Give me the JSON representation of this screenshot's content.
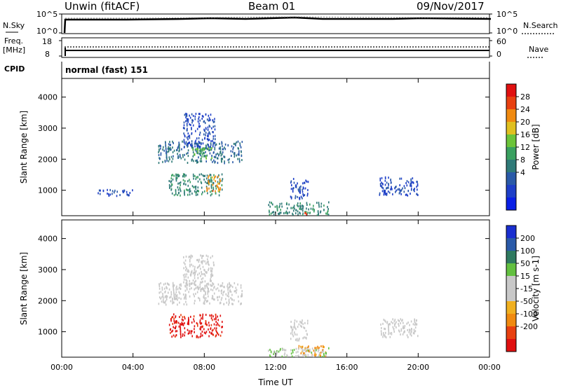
{
  "header": {
    "station": "Unwin (fitACF)",
    "beam": "Beam 01",
    "date": "09/Nov/2017"
  },
  "top_panels": {
    "nsky_label": "N.Sky",
    "nsky_ticks": [
      "10^5",
      "10^0"
    ],
    "nsearch_label": "N.Search",
    "nsearch_ticks": [
      "10^5",
      "10^0"
    ],
    "freq_label": "Freq.",
    "freq_unit": "[MHz]",
    "freq_ticks": [
      "18",
      "8"
    ],
    "nave_label": "Nave",
    "nave_ticks": [
      "60",
      "0"
    ],
    "cpid_label": "CPID",
    "cpid_value": "normal (fast) 151"
  },
  "colors": {
    "power_scale": [
      "#0a1fe6",
      "#1e3fc8",
      "#2a5aa8",
      "#2f7a78",
      "#3aa060",
      "#6cc43a",
      "#e0c020",
      "#f08a10",
      "#e84010",
      "#e01010"
    ],
    "velocity_scale": [
      "#1a2fd0",
      "#2a5aa8",
      "#2f7a60",
      "#63c040",
      "#c8c8c8",
      "#c8c8c8",
      "#f0b020",
      "#f08a10",
      "#e84010",
      "#e01010"
    ]
  },
  "chart_data": [
    {
      "type": "heatmap",
      "panel": "power",
      "ylabel": "Slant Range [km]",
      "yticks": [
        "4000",
        "3000",
        "2000",
        "1000"
      ],
      "ylim": [
        180,
        4600
      ],
      "xlim": [
        0,
        24
      ],
      "colorbar": {
        "label": "Power [dB]",
        "ticks": [
          "28",
          "24",
          "20",
          "16",
          "12",
          "8",
          "4"
        ],
        "range": [
          0,
          32
        ]
      },
      "regions": [
        {
          "t": [
            5.4,
            10.1
          ],
          "r": [
            1900,
            2600
          ],
          "value": 10
        },
        {
          "t": [
            6.8,
            8.6
          ],
          "r": [
            2400,
            3500
          ],
          "value": 6
        },
        {
          "t": [
            7.3,
            8.4
          ],
          "r": [
            2050,
            2400
          ],
          "value": 16
        },
        {
          "t": [
            6.0,
            9.0
          ],
          "r": [
            850,
            1550
          ],
          "value": 12
        },
        {
          "t": [
            8.1,
            8.9
          ],
          "r": [
            1000,
            1500
          ],
          "value": 24
        },
        {
          "t": [
            12.8,
            13.8
          ],
          "r": [
            750,
            1400
          ],
          "value": 6
        },
        {
          "t": [
            17.8,
            20.0
          ],
          "r": [
            850,
            1450
          ],
          "value": 6
        },
        {
          "t": [
            2.0,
            4.0
          ],
          "r": [
            850,
            1050
          ],
          "value": 6
        },
        {
          "t": [
            11.5,
            15.0
          ],
          "r": [
            220,
            650
          ],
          "value": 12
        },
        {
          "t": [
            13.5,
            13.8
          ],
          "r": [
            250,
            380
          ],
          "value": 28
        }
      ]
    },
    {
      "type": "heatmap",
      "panel": "velocity",
      "ylabel": "Slant Range [km]",
      "yticks": [
        "4000",
        "3000",
        "2000",
        "1000"
      ],
      "ylim": [
        180,
        4600
      ],
      "xlim": [
        0,
        24
      ],
      "xticks": [
        "00:00",
        "04:00",
        "08:00",
        "12:00",
        "16:00",
        "20:00",
        "00:00"
      ],
      "xlabel": "Time UT",
      "colorbar": {
        "label": "Velocity [m s-1]",
        "ticks": [
          "200",
          "100",
          "50",
          "15",
          "-15",
          "-50",
          "-100",
          "-200"
        ],
        "range": [
          -250,
          250
        ]
      },
      "regions": [
        {
          "t": [
            5.4,
            10.1
          ],
          "r": [
            1900,
            2600
          ],
          "value": 0
        },
        {
          "t": [
            6.8,
            8.6
          ],
          "r": [
            2400,
            3500
          ],
          "value": 0
        },
        {
          "t": [
            6.0,
            9.0
          ],
          "r": [
            850,
            1600
          ],
          "value": -220
        },
        {
          "t": [
            12.8,
            13.8
          ],
          "r": [
            750,
            1400
          ],
          "value": 0
        },
        {
          "t": [
            17.8,
            20.0
          ],
          "r": [
            850,
            1450
          ],
          "value": 0
        },
        {
          "t": [
            13.2,
            14.8
          ],
          "r": [
            250,
            600
          ],
          "value": -120
        },
        {
          "t": [
            11.5,
            15.0
          ],
          "r": [
            200,
            500
          ],
          "value": 40
        }
      ]
    }
  ]
}
